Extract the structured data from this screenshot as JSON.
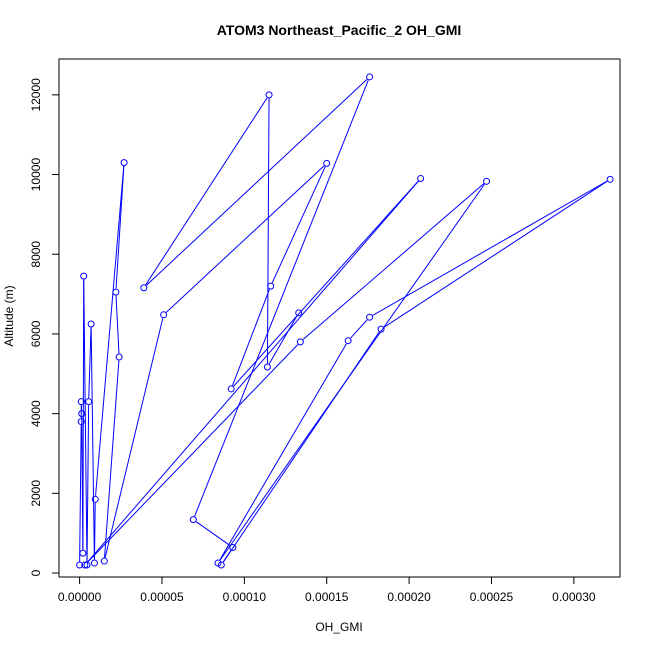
{
  "chart_data": {
    "type": "line",
    "title": "ATOM3 Northeast_Pacific_2 OH_GMI",
    "xlabel": "OH_GMI",
    "ylabel": "Altitude (m)",
    "xlim": [
      -1.25e-05,
      0.000328
    ],
    "ylim": [
      -100,
      12900
    ],
    "x_ticks": [
      0,
      5e-05,
      0.0001,
      0.00015,
      0.0002,
      0.00025,
      0.0003
    ],
    "x_tick_labels": [
      "0.00000",
      "0.00005",
      "0.00010",
      "0.00015",
      "0.00020",
      "0.00025",
      "0.00030"
    ],
    "y_ticks": [
      0,
      2000,
      4000,
      6000,
      8000,
      10000,
      12000
    ],
    "y_tick_labels": [
      "0",
      "2000",
      "4000",
      "6000",
      "8000",
      "10000",
      "12000"
    ],
    "grid": false,
    "series": [
      {
        "color": "#0000ff",
        "marker": "open-circle",
        "points": [
          {
            "x": 0.0,
            "y": 200
          },
          {
            "x": 1e-06,
            "y": 3800
          },
          {
            "x": 1e-06,
            "y": 4300
          },
          {
            "x": 1.3e-06,
            "y": 4000
          },
          {
            "x": 2e-06,
            "y": 500
          },
          {
            "x": 2.5e-06,
            "y": 7450
          },
          {
            "x": 4.5e-06,
            "y": 200
          },
          {
            "x": 5.5e-06,
            "y": 4300
          },
          {
            "x": 7e-06,
            "y": 6250
          },
          {
            "x": 9e-06,
            "y": 250
          },
          {
            "x": 9.5e-06,
            "y": 1850
          },
          {
            "x": 2.7e-05,
            "y": 10300
          },
          {
            "x": 2.2e-05,
            "y": 7050
          },
          {
            "x": 2.4e-05,
            "y": 5420
          },
          {
            "x": 1.5e-05,
            "y": 300
          },
          {
            "x": 5.1e-05,
            "y": 6480
          },
          {
            "x": 0.00015,
            "y": 10280
          },
          {
            "x": 0.000116,
            "y": 7200
          },
          {
            "x": 9.2e-05,
            "y": 4620
          },
          {
            "x": 0.000207,
            "y": 9900
          },
          {
            "x": 3.2e-06,
            "y": 200
          },
          {
            "x": 0.000134,
            "y": 5800
          },
          {
            "x": 0.000247,
            "y": 9830
          },
          {
            "x": 8.4e-05,
            "y": 250
          },
          {
            "x": 0.000163,
            "y": 5830
          },
          {
            "x": 0.000176,
            "y": 6420
          },
          {
            "x": 0.000322,
            "y": 9880
          },
          {
            "x": 0.000183,
            "y": 6120
          },
          {
            "x": 8.6e-05,
            "y": 200
          },
          {
            "x": 9.3e-05,
            "y": 640
          },
          {
            "x": 6.9e-05,
            "y": 1340
          },
          {
            "x": 0.000176,
            "y": 12450
          },
          {
            "x": 3.9e-05,
            "y": 7160
          },
          {
            "x": 0.000115,
            "y": 12000
          },
          {
            "x": 0.000114,
            "y": 5170
          },
          {
            "x": 0.000133,
            "y": 6530
          }
        ]
      }
    ]
  }
}
